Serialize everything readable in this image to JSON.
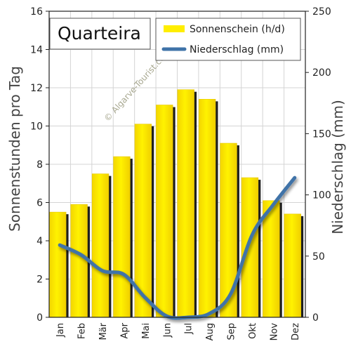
{
  "chart_data": {
    "type": "bar",
    "title": "Quarteira",
    "categories": [
      "Jan",
      "Feb",
      "Mär",
      "Apr",
      "Mai",
      "Jun",
      "Jul",
      "Aug",
      "Sep",
      "Okt",
      "Nov",
      "Dez"
    ],
    "series": [
      {
        "name": "Sonnenschein (h/d)",
        "type": "bar",
        "axis": "left",
        "values": [
          5.5,
          5.9,
          7.5,
          8.4,
          10.1,
          11.1,
          11.9,
          11.4,
          9.1,
          7.3,
          6.1,
          5.4
        ],
        "color": "#ffee00"
      },
      {
        "name": "Niederschlag (mm)",
        "type": "line",
        "axis": "right",
        "values": [
          59,
          51,
          38,
          35,
          16,
          1,
          0,
          3,
          19,
          67,
          92,
          114
        ],
        "color": "#3f73a8"
      }
    ],
    "ylabel": "Sonnenstunden pro Tag",
    "ylabel_right": "Niederschlag (mm)",
    "ylim": [
      0,
      16
    ],
    "yticks": [
      "0",
      "2",
      "4",
      "6",
      "8",
      "10",
      "12",
      "14",
      "16"
    ],
    "ylim_right": [
      0,
      250
    ],
    "yticks_right": [
      "0",
      "50",
      "100",
      "150",
      "200",
      "250"
    ],
    "grid": true,
    "legend": "top-right"
  },
  "watermark": "© Algarve-Tourist.com"
}
